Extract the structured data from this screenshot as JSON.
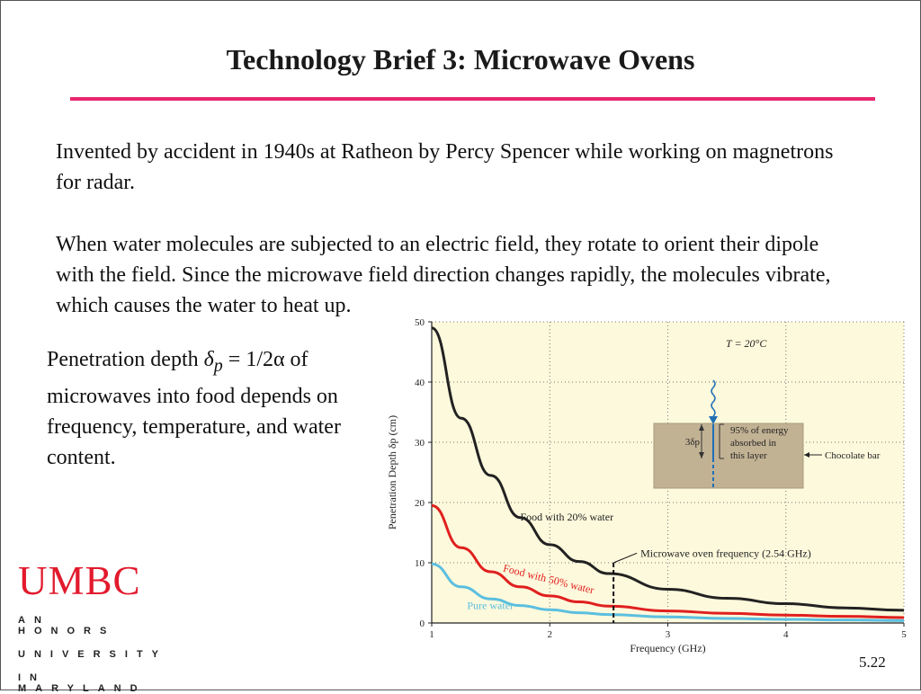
{
  "slide": {
    "title": "Technology Brief 3: Microwave Ovens",
    "para1": "Invented by accident in 1940s at Ratheon by Percy Spencer while working on magnetrons for radar.",
    "para2": "When water molecules are subjected to an electric field, they rotate to orient their dipole with the field. Since the microwave field direction changes rapidly, the molecules vibrate, which causes the water to heat up.",
    "side_text_before": "Penetration depth ",
    "side_symbol": "δ",
    "side_subscript": "p",
    "side_text_after": " = 1/2α of microwaves into food depends on frequency, temperature, and water content.",
    "page_number": "5.22",
    "accent_color": "#e8276f"
  },
  "logo": {
    "name": "UMBC",
    "line1": "AN HONORS",
    "line2": "UNIVERSITY",
    "line3": "IN MARYLAND",
    "color": "#e21a2d"
  },
  "chart_data": {
    "type": "line",
    "xlabel": "Frequency (GHz)",
    "ylabel": "Penetration Depth δp (cm)",
    "xlim": [
      1,
      5
    ],
    "ylim": [
      0,
      50
    ],
    "xticks": [
      "1",
      "2",
      "3",
      "4",
      "5"
    ],
    "yticks": [
      "0",
      "10",
      "20",
      "30",
      "40",
      "50"
    ],
    "grid": true,
    "background": "#fdf9dc",
    "series": [
      {
        "name": "Food with 20% water",
        "color": "#222222",
        "x": [
          1,
          1.25,
          1.5,
          1.75,
          2,
          2.25,
          2.5,
          3,
          3.5,
          4,
          4.5,
          5
        ],
        "y": [
          49,
          34,
          24.5,
          17.5,
          13,
          10.2,
          8.2,
          5.6,
          4.1,
          3.2,
          2.5,
          2.1
        ]
      },
      {
        "name": "Food with 50% water",
        "color": "#e0201e",
        "x": [
          1,
          1.25,
          1.5,
          1.75,
          2,
          2.25,
          2.5,
          3,
          3.5,
          4,
          4.5,
          5
        ],
        "y": [
          19.5,
          12.5,
          8.5,
          6,
          4.5,
          3.5,
          2.8,
          2,
          1.6,
          1.3,
          1.1,
          0.9
        ]
      },
      {
        "name": "Pure water",
        "color": "#5bbfe0",
        "x": [
          1,
          1.25,
          1.5,
          1.75,
          2,
          2.25,
          2.5,
          3,
          3.5,
          4,
          4.5,
          5
        ],
        "y": [
          9.8,
          6,
          4,
          2.9,
          2.2,
          1.7,
          1.4,
          1,
          0.75,
          0.6,
          0.5,
          0.4
        ]
      }
    ],
    "marker": {
      "x": 2.54,
      "label": "Microwave oven frequency (2.54 GHz)"
    },
    "annotations": {
      "temperature": "T = 20°C",
      "energy_label": [
        "95% of energy",
        "absorbed in",
        "this layer"
      ],
      "depth_label": "3δp",
      "chocolate": "Chocolate bar"
    }
  }
}
